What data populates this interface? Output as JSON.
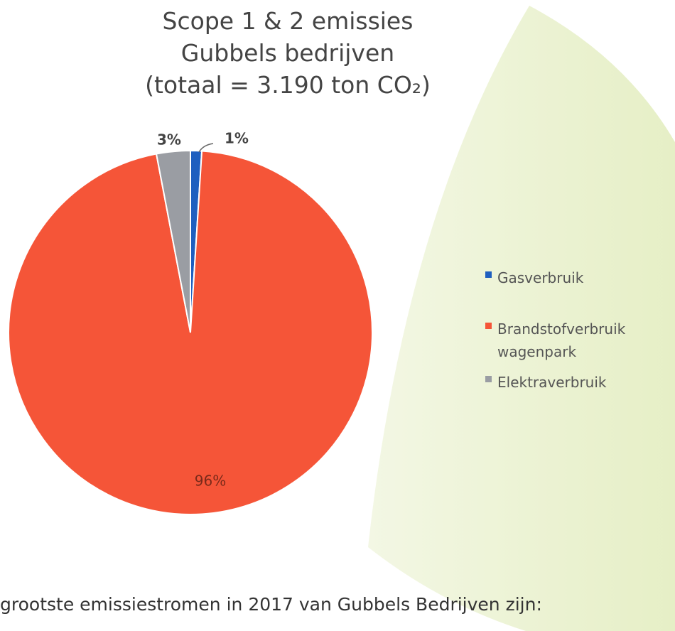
{
  "chart_data": {
    "type": "pie",
    "title_lines": [
      "Scope 1 & 2 emissies",
      "Gubbels bedrijven",
      "(totaal = 3.190 ton CO₂)"
    ],
    "categories": [
      "Gasverbruik",
      "Brandstofverbruik wagenpark",
      "Elektraverbruik"
    ],
    "values": [
      1,
      96,
      3
    ],
    "value_labels": [
      "1%",
      "96%",
      "3%"
    ],
    "colors": [
      "#1f5fbf",
      "#f55538",
      "#9a9da3"
    ],
    "legend": "right"
  },
  "footer_text": "grootste emissiestromen in 2017 van Gubbels Bedrijven zijn:"
}
